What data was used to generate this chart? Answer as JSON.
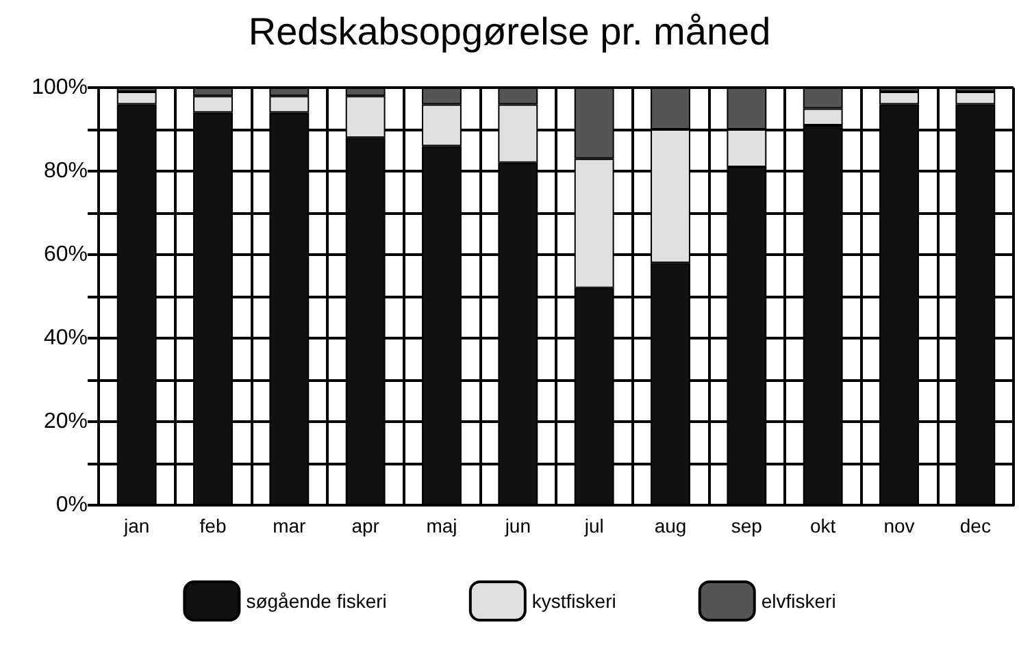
{
  "chart_data": {
    "type": "bar",
    "title": "Redskabsopgørelse pr. måned",
    "stacked": true,
    "categories": [
      "jan",
      "feb",
      "mar",
      "apr",
      "maj",
      "jun",
      "jul",
      "aug",
      "sep",
      "okt",
      "nov",
      "dec"
    ],
    "series": [
      {
        "name": "søgående fiskeri",
        "color": "#111111",
        "values": [
          96,
          94,
          94,
          88,
          86,
          82,
          52,
          58,
          81,
          91,
          96,
          96
        ]
      },
      {
        "name": "kystfiskeri",
        "color": "#e0e0e0",
        "values": [
          3,
          4,
          4,
          10,
          10,
          14,
          31,
          32,
          9,
          4,
          3,
          3
        ]
      },
      {
        "name": "elvfiskeri",
        "color": "#555555",
        "values": [
          1,
          2,
          2,
          2,
          4,
          4,
          17,
          10,
          10,
          5,
          1,
          1
        ]
      }
    ],
    "ylim": [
      0,
      100
    ],
    "yticks": [
      {
        "value": 0,
        "label": "0%"
      },
      {
        "value": 10,
        "label": null
      },
      {
        "value": 20,
        "label": "20%"
      },
      {
        "value": 30,
        "label": null
      },
      {
        "value": 40,
        "label": "40%"
      },
      {
        "value": 50,
        "label": null
      },
      {
        "value": 60,
        "label": "60%"
      },
      {
        "value": 70,
        "label": null
      },
      {
        "value": 80,
        "label": "80%"
      },
      {
        "value": 90,
        "label": null
      },
      {
        "value": 100,
        "label": "100%"
      }
    ],
    "grid": true,
    "legend": "bottom"
  }
}
